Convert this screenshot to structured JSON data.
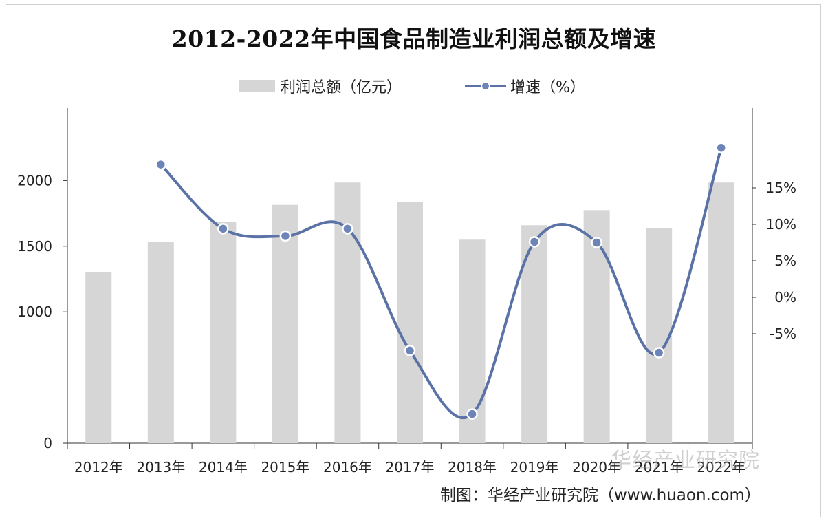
{
  "title": "2012-2022年中国食品制造业利润总额及增速",
  "legend": {
    "bar_label": "利润总额（亿元）",
    "line_label": "增速（%）"
  },
  "source_text": "制图：华经产业研究院（www.huaon.com）",
  "watermark_text": "华经产业研究院",
  "colors": {
    "bar": "#d6d6d6",
    "line": "#5a72a6",
    "point_fill": "#6d84b8",
    "point_stroke": "#ffffff"
  },
  "chart_data": {
    "type": "bar+line",
    "categories": [
      "2012年",
      "2013年",
      "2014年",
      "2015年",
      "2016年",
      "2017年",
      "2018年",
      "2019年",
      "2020年",
      "2021年",
      "2022年"
    ],
    "series": [
      {
        "name": "利润总额（亿元）",
        "type": "bar",
        "axis": "left",
        "values": [
          1305,
          1535,
          1685,
          1815,
          1985,
          1835,
          1550,
          1660,
          1775,
          1640,
          1985
        ]
      },
      {
        "name": "增速（%）",
        "type": "line",
        "axis": "right",
        "values": [
          null,
          18.2,
          9.4,
          8.4,
          9.4,
          -7.3,
          -16.0,
          7.6,
          7.5,
          -7.6,
          20.5
        ]
      }
    ],
    "left_axis": {
      "ticks": [
        0,
        1000,
        1500,
        2000
      ],
      "tick_labels": [
        "0",
        "1000",
        "1500",
        "2000"
      ],
      "ylim": [
        0,
        2500
      ]
    },
    "right_axis": {
      "ticks": [
        -5,
        0,
        5,
        10,
        15
      ],
      "tick_labels": [
        "-5%",
        "0%",
        "5%",
        "10%",
        "15%"
      ],
      "ylim": [
        -20,
        25
      ]
    },
    "legend_position": "top-center",
    "grid": false
  }
}
